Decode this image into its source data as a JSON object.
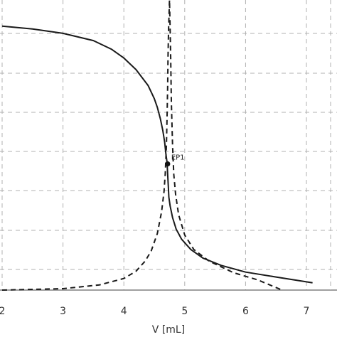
{
  "chart_data": {
    "type": "line",
    "title": "",
    "xlabel": "V [mL]",
    "ylabel": "",
    "xlim": [
      2,
      7.5
    ],
    "ylim": [
      0,
      10
    ],
    "grid": true,
    "x_ticks": [
      "2",
      "3",
      "4",
      "5",
      "6",
      "7"
    ],
    "series": [
      {
        "style": "solid",
        "color": "#1a1a1a",
        "points": [
          [
            2.0,
            9.1
          ],
          [
            2.5,
            9.0
          ],
          [
            3.0,
            8.85
          ],
          [
            3.5,
            8.6
          ],
          [
            3.8,
            8.3
          ],
          [
            4.0,
            8.0
          ],
          [
            4.2,
            7.6
          ],
          [
            4.4,
            7.05
          ],
          [
            4.5,
            6.6
          ],
          [
            4.55,
            6.3
          ],
          [
            4.6,
            5.9
          ],
          [
            4.64,
            5.5
          ],
          [
            4.67,
            5.1
          ],
          [
            4.69,
            4.7
          ],
          [
            4.71,
            4.4
          ],
          [
            4.72,
            4.0
          ],
          [
            4.73,
            3.6
          ],
          [
            4.74,
            3.2
          ],
          [
            4.76,
            2.9
          ],
          [
            4.8,
            2.5
          ],
          [
            4.86,
            2.1
          ],
          [
            4.95,
            1.75
          ],
          [
            5.1,
            1.4
          ],
          [
            5.3,
            1.1
          ],
          [
            5.6,
            0.85
          ],
          [
            6.0,
            0.62
          ],
          [
            6.5,
            0.45
          ],
          [
            7.1,
            0.25
          ]
        ]
      },
      {
        "style": "dashed",
        "color": "#1a1a1a",
        "points": [
          [
            2.0,
            0.0
          ],
          [
            3.0,
            0.05
          ],
          [
            3.6,
            0.18
          ],
          [
            4.0,
            0.4
          ],
          [
            4.2,
            0.65
          ],
          [
            4.35,
            1.0
          ],
          [
            4.45,
            1.35
          ],
          [
            4.55,
            1.95
          ],
          [
            4.62,
            2.7
          ],
          [
            4.66,
            3.4
          ],
          [
            4.68,
            4.0
          ],
          [
            4.7,
            5.0
          ],
          [
            4.71,
            6.0
          ],
          [
            4.72,
            7.0
          ],
          [
            4.725,
            8.0
          ],
          [
            4.735,
            9.0
          ],
          [
            4.75,
            10.0
          ],
          [
            4.76,
            9.0
          ],
          [
            4.77,
            8.0
          ],
          [
            4.78,
            6.5
          ],
          [
            4.8,
            5.0
          ],
          [
            4.82,
            4.0
          ],
          [
            4.85,
            3.3
          ],
          [
            4.9,
            2.6
          ],
          [
            5.0,
            1.9
          ],
          [
            5.15,
            1.4
          ],
          [
            5.4,
            1.0
          ],
          [
            5.8,
            0.6
          ],
          [
            6.2,
            0.35
          ],
          [
            6.6,
            0.0
          ]
        ]
      }
    ],
    "markers": [
      {
        "label": "EP1",
        "x": 4.72,
        "y": 4.35
      }
    ]
  },
  "colors": {
    "grid": "#b0b0b0",
    "line": "#1a1a1a"
  }
}
